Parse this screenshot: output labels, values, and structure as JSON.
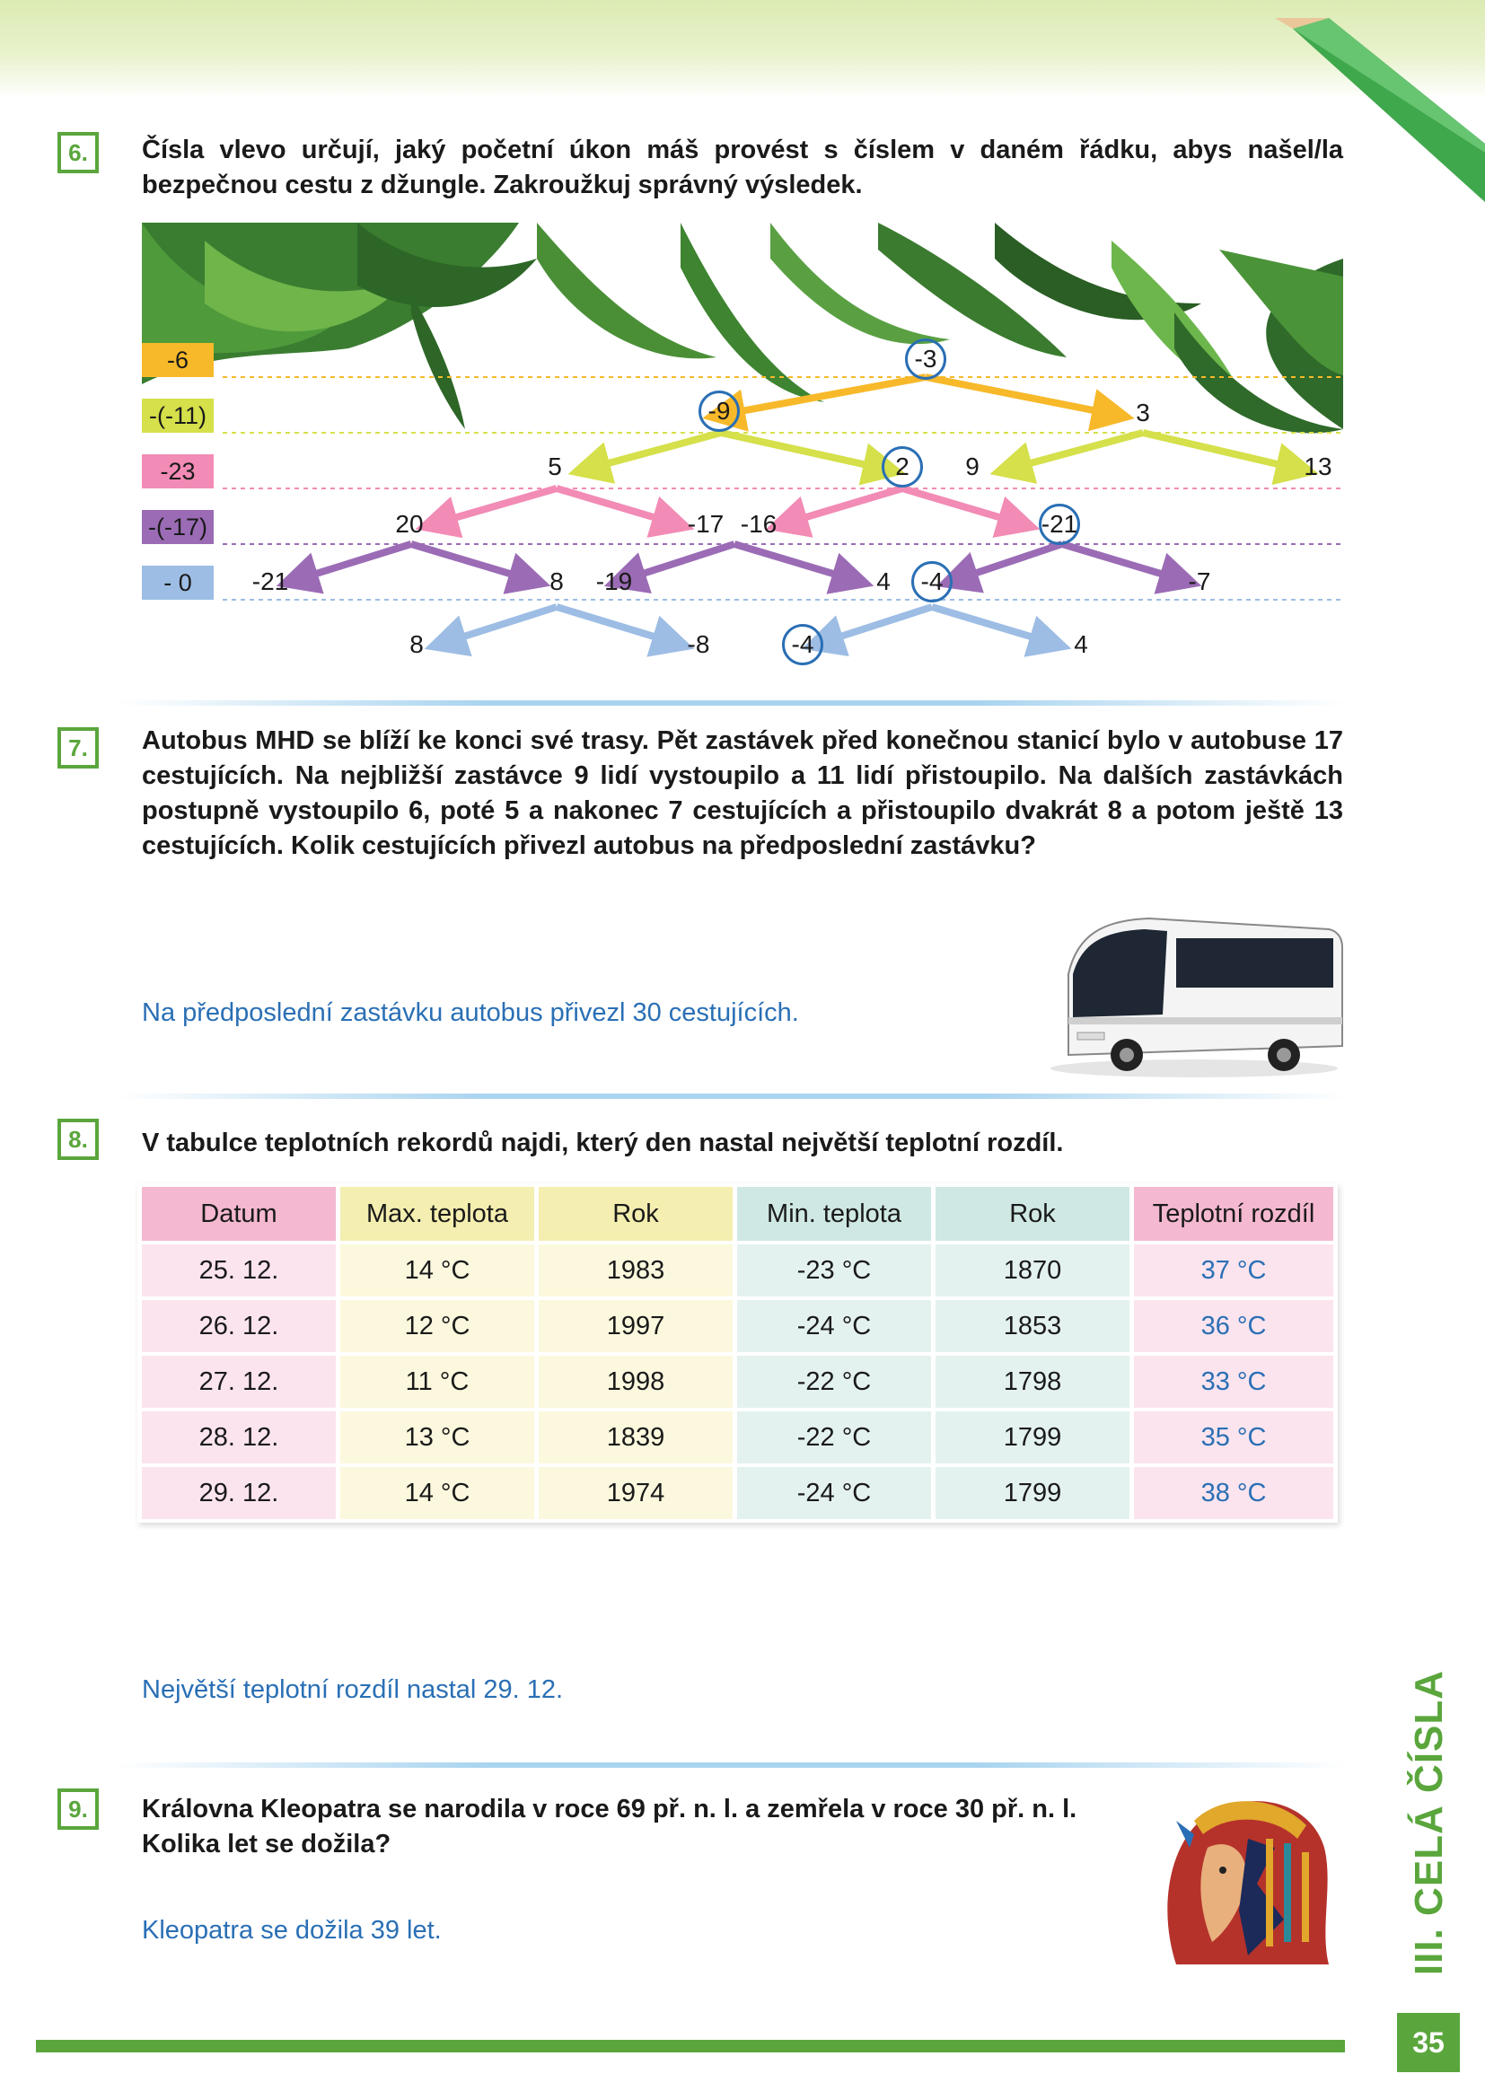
{
  "page_number": "35",
  "chapter_label": "III. CELÁ ČÍSLA",
  "q6": {
    "num": "6.",
    "text": "Čísla vlevo určují, jaký početní úkon máš provést s číslem v daném řádku, abys našel/la bezpečnou cestu z džungle. Zakroužkuj správný výsledek.",
    "operations": [
      {
        "label": "-6",
        "color": "#f7b92a"
      },
      {
        "label": "-(-11)",
        "color": "#d5e04a"
      },
      {
        "label": "-23",
        "color": "#f28bb5"
      },
      {
        "label": "-(-17)",
        "color": "#9b6cb5"
      },
      {
        "label": "- 0",
        "color": "#9dbde4"
      }
    ],
    "nodes": {
      "r0_top": "-3",
      "r1_left": "-9",
      "r1_right": "3",
      "r2_a": "5",
      "r2_b": "2",
      "r2_c": "9",
      "r2_d": "13",
      "r3_a": "20",
      "r3_b": "-17",
      "r3_c": "-16",
      "r3_d": "-21",
      "r4_a": "-21",
      "r4_b": "8",
      "r4_c": "-19",
      "r4_d": "4",
      "r4_e": "-4",
      "r4_f": "-7",
      "r5_a": "8",
      "r5_b": "-8",
      "r5_c": "-4",
      "r5_d": "4"
    }
  },
  "q7": {
    "num": "7.",
    "text": "Autobus MHD se blíží ke konci své trasy. Pět zastávek před konečnou stanicí bylo v autobuse 17 cestujících. Na nejbližší zastávce 9 lidí vystoupilo a 11 lidí přistoupilo. Na dalších zastávkách postupně vystoupilo 6, poté 5 a nakonec 7 cestujících a přistoupilo dvakrát 8 a potom ještě 13 cestujících. Kolik cestujících přivezl autobus na předposlední zastávku?",
    "answer": "Na předposlední zastávku autobus přivezl 30 cestujících."
  },
  "q8": {
    "num": "8.",
    "text": "V tabulce teplotních rekordů najdi, který den nastal největší teplotní rozdíl.",
    "headers": [
      "Datum",
      "Max. teplota",
      "Rok",
      "Min. teplota",
      "Rok",
      "Teplotní rozdíl"
    ],
    "rows": [
      [
        "25. 12.",
        "14 °C",
        "1983",
        "-23 °C",
        "1870",
        "37 °C"
      ],
      [
        "26. 12.",
        "12 °C",
        "1997",
        "-24 °C",
        "1853",
        "36 °C"
      ],
      [
        "27. 12.",
        "11 °C",
        "1998",
        "-22 °C",
        "1798",
        "33 °C"
      ],
      [
        "28. 12.",
        "13 °C",
        "1839",
        "-22 °C",
        "1799",
        "35 °C"
      ],
      [
        "29. 12.",
        "14 °C",
        "1974",
        "-24 °C",
        "1799",
        "38 °C"
      ]
    ],
    "answer": "Největší teplotní rozdíl nastal 29. 12."
  },
  "q9": {
    "num": "9.",
    "text": "Královna Kleopatra se narodila v roce 69 př. n. l. a zemřela v roce  30 př. n. l. Kolika let se dožila?",
    "answer": "Kleopatra se dožila 39 let."
  },
  "colors": {
    "green": "#5aa63c",
    "answer_blue": "#2a6fb5"
  }
}
